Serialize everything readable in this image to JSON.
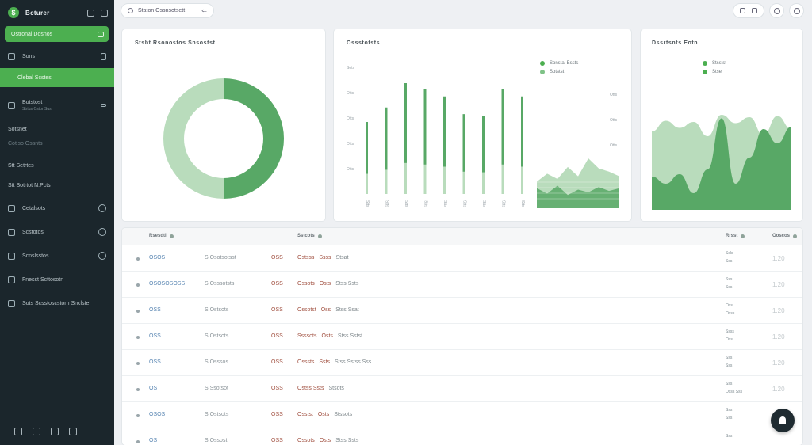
{
  "app": {
    "brand_logo": "$",
    "brand_name": "Bcturer"
  },
  "sidebar": {
    "items": [
      {
        "label": "Ostronal Dosnos",
        "type": "active"
      },
      {
        "label": "Sons",
        "type": "icon"
      },
      {
        "label": "Clebal Scstes",
        "type": "sub-active"
      },
      {
        "label": "Botstost",
        "sub": "Strtus Ostor Sus",
        "type": "icon"
      },
      {
        "label": "Sotsnet",
        "type": "plain"
      },
      {
        "label": "Cotlso Ossnts",
        "type": "plain-dim"
      },
      {
        "label": "Stt Setrtes",
        "type": "plain"
      },
      {
        "label": "Stt Sotrtot N.Pcts",
        "type": "plain"
      },
      {
        "label": "Cetalsots",
        "type": "icon-tail"
      },
      {
        "label": "Scstotos",
        "type": "icon-tail"
      },
      {
        "label": "Scnslsstos",
        "type": "icon-tail"
      },
      {
        "label": "Fnesst Scttosotn",
        "type": "icon"
      },
      {
        "label": "Sots Scsstoscstorn Snclste",
        "type": "icon"
      }
    ]
  },
  "topbar": {
    "search_text": "Staton Ossnsotsett",
    "caret": "⇐"
  },
  "cards": {
    "donut": {
      "title": "Stsbt Rsonostos Snsostst"
    },
    "bars": {
      "title": "Ossstotsts",
      "legend": [
        {
          "label": "Sonstal Bssts",
          "color": "#4caf50"
        },
        {
          "label": "Sotstst",
          "color": "#7fc287"
        }
      ],
      "yticks": [
        "Sots",
        "Otts",
        "Otts",
        "Otts",
        "Otts"
      ],
      "yticks_right": [
        "Otts",
        "Otts",
        "Otts"
      ],
      "xticks": [
        "Stts",
        "Stts",
        "Stts",
        "Stts",
        "Stts",
        "Stts",
        "Stts",
        "Stts",
        "Stts"
      ]
    },
    "area": {
      "title": "Dssrtsnts Eotn",
      "legend": [
        {
          "label": "Stsstst",
          "color": "#4caf50"
        },
        {
          "label": "Stse",
          "color": "#4caf50"
        }
      ]
    }
  },
  "chart_data": [
    {
      "type": "pie",
      "title": "Stsbt Rsonostos Snsostst",
      "values": [
        50,
        50
      ],
      "colors": [
        "#58a866",
        "#b9dcbc"
      ]
    },
    {
      "type": "bar",
      "title": "Ossstotsts",
      "values": [
        65,
        78,
        100,
        95,
        88,
        72,
        70,
        95,
        88
      ],
      "ylim": [
        0,
        100
      ]
    },
    {
      "type": "area",
      "title": "Dssrtsnts Eotn",
      "x": [
        0,
        1,
        2,
        3,
        4,
        5,
        6,
        7,
        8,
        9,
        10
      ],
      "series": [
        {
          "name": "Stsstst",
          "values": [
            66,
            75,
            69,
            74,
            62,
            80,
            73,
            78,
            63,
            79,
            68
          ]
        },
        {
          "name": "Stse",
          "values": [
            28,
            22,
            30,
            14,
            34,
            77,
            22,
            44,
            68,
            56,
            70
          ]
        }
      ],
      "ylim": [
        0,
        100
      ]
    }
  ],
  "table": {
    "headers": [
      {
        "label": "Rsesdtl",
        "dot": true
      },
      {
        "label": "Sstcots",
        "dot": true
      },
      {
        "label": "Rrsst",
        "dot": true
      },
      {
        "label": "Ooscos",
        "dot": true
      }
    ],
    "rows": [
      {
        "id": "OSOS",
        "code": "S Osotsotsst",
        "num": "OSS",
        "tags": [
          [
            "Ostsss",
            "red"
          ],
          [
            "Ssss",
            "red"
          ],
          [
            "Stsat",
            "gray"
          ]
        ],
        "stat": [
          "Ssls",
          "Sss"
        ],
        "val": "1.20"
      },
      {
        "id": "OSOSOSOSS",
        "code": "S Osssotsts",
        "num": "OSS",
        "tags": [
          [
            "Ossots",
            "red"
          ],
          [
            "Osts",
            "red"
          ],
          [
            "Stss Ssts",
            "gray"
          ]
        ],
        "stat": [
          "Sss",
          "Sss"
        ],
        "val": "1.20"
      },
      {
        "id": "OSS",
        "code": "S Ostsots",
        "num": "OSS",
        "tags": [
          [
            "Ossotst",
            "red"
          ],
          [
            "Oss",
            "red"
          ],
          [
            "Stss Ssat",
            "gray"
          ]
        ],
        "stat": [
          "Oss",
          "Osss"
        ],
        "val": "1.20"
      },
      {
        "id": "OSS",
        "code": "S Ostsots",
        "num": "OSS",
        "tags": [
          [
            "Ssssots",
            "red"
          ],
          [
            "Osts",
            "red"
          ],
          [
            "Stss Sstst",
            "gray"
          ]
        ],
        "stat": [
          "Ssss",
          "Oss"
        ],
        "val": "1.20"
      },
      {
        "id": "OSS",
        "code": "S Osssos",
        "num": "OSS",
        "tags": [
          [
            "Osssts",
            "red"
          ],
          [
            "Ssts",
            "red"
          ],
          [
            "Stss Sstss Sss",
            "gray"
          ]
        ],
        "stat": [
          "Sss",
          "Sss"
        ],
        "val": "1.20"
      },
      {
        "id": "OS",
        "code": "S Ssotsot",
        "num": "OSS",
        "tags": [
          [
            "Ostss Ssts",
            "red"
          ],
          [
            "Stsots",
            "gray"
          ]
        ],
        "stat": [
          "Sss",
          "Osss Sss"
        ],
        "val": "1.20"
      },
      {
        "id": "OSOS",
        "code": "S Ostsots",
        "num": "OSS",
        "tags": [
          [
            "Osstst",
            "red"
          ],
          [
            "Osts",
            "red"
          ],
          [
            "Stssots",
            "gray"
          ]
        ],
        "stat": [
          "Sss",
          "Sss"
        ],
        "val": "1.20"
      },
      {
        "id": "OS",
        "code": "S Ossost",
        "num": "OSS",
        "tags": [
          [
            "Ossots",
            "red"
          ],
          [
            "Osts",
            "red"
          ],
          [
            "Stss Ssts",
            "gray"
          ]
        ],
        "stat": [
          "Sss",
          ""
        ],
        "val": ""
      }
    ]
  }
}
